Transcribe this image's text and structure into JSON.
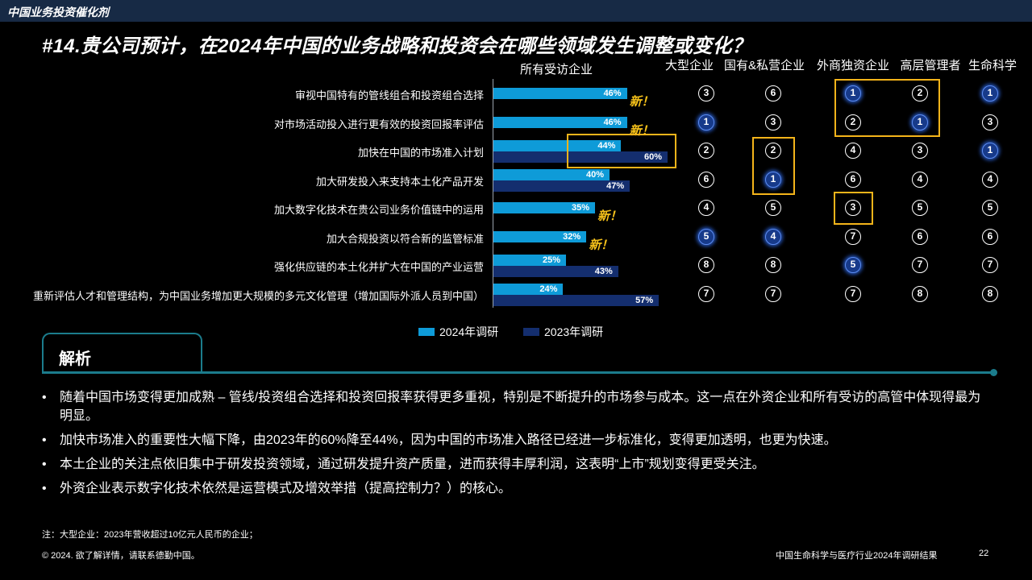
{
  "header": {
    "title": "中国业务投资催化剂"
  },
  "slide": {
    "title": "#14.贵公司预计，在2024年中国的业务战略和投资会在哪些领域发生调整或变化？"
  },
  "chart_data": {
    "type": "bar",
    "title": "所有受访企业",
    "unit": "%",
    "categories": [
      "审视中国特有的管线组合和投资组合选择",
      "对市场活动投入进行更有效的投资回报率评估",
      "加快在中国的市场准入计划",
      "加大研发投入来支持本土化产品开发",
      "加大数字化技术在贵公司业务价值链中的运用",
      "加大合规投资以符合新的监管标准",
      "强化供应链的本土化并扩大在中国的产业运营",
      "重新评估人才和管理结构，为中国业务增加更大规模的多元文化管理（增加国际外派人员到中国）"
    ],
    "series": [
      {
        "name": "2024年调研",
        "color": "#0e9bd8",
        "values": [
          46,
          46,
          44,
          40,
          35,
          32,
          25,
          24
        ]
      },
      {
        "name": "2023年调研",
        "color": "#142e6e",
        "values": [
          null,
          null,
          60,
          47,
          null,
          null,
          43,
          57
        ]
      }
    ],
    "new_label": "新！",
    "new_flags": [
      true,
      true,
      false,
      false,
      true,
      true,
      false,
      false
    ],
    "legend": "bottom",
    "segments": {
      "headers": [
        "大型企业",
        "国有&私营企业",
        "外商独资企业",
        "高层管理者",
        "生命科学"
      ],
      "ranks": [
        [
          3,
          6,
          1,
          2,
          1
        ],
        [
          1,
          3,
          2,
          1,
          3
        ],
        [
          2,
          2,
          4,
          3,
          1
        ],
        [
          6,
          1,
          6,
          4,
          4
        ],
        [
          4,
          5,
          3,
          5,
          5
        ],
        [
          5,
          4,
          7,
          6,
          6
        ],
        [
          8,
          8,
          5,
          7,
          7
        ],
        [
          7,
          7,
          7,
          8,
          8
        ]
      ],
      "highlighted": [
        [
          false,
          false,
          true,
          false,
          true
        ],
        [
          true,
          false,
          false,
          true,
          false
        ],
        [
          false,
          false,
          false,
          false,
          true
        ],
        [
          false,
          true,
          false,
          false,
          false
        ],
        [
          false,
          false,
          false,
          false,
          false
        ],
        [
          true,
          true,
          false,
          false,
          false
        ],
        [
          false,
          false,
          true,
          false,
          false
        ],
        [
          false,
          false,
          false,
          false,
          false
        ]
      ]
    }
  },
  "analysis": {
    "title": "解析",
    "bullets": [
      "随着中国市场变得更加成熟 – 管线/投资组合选择和投资回报率获得更多重视，特别是不断提升的市场参与成本。这一点在外资企业和所有受访的高管中体现得最为明显。",
      "加快市场准入的重要性大幅下降，由2023年的60%降至44%，因为中国的市场准入路径已经进一步标准化，变得更加透明，也更为快速。",
      "本土企业的关注点依旧集中于研发投资领域，通过研发提升资产质量，进而获得丰厚利润，这表明“上市”规划变得更受关注。",
      "外资企业表示数字化技术依然是运营模式及增效举措（提高控制力？）的核心。"
    ]
  },
  "footer": {
    "note": "注：大型企业：2023年营收超过10亿元人民币的企业；",
    "copyright": "© 2024. 欲了解详情，请联系德勤中国。",
    "report": "中国生命科学与医疗行业2024年调研结果",
    "page": "22"
  }
}
